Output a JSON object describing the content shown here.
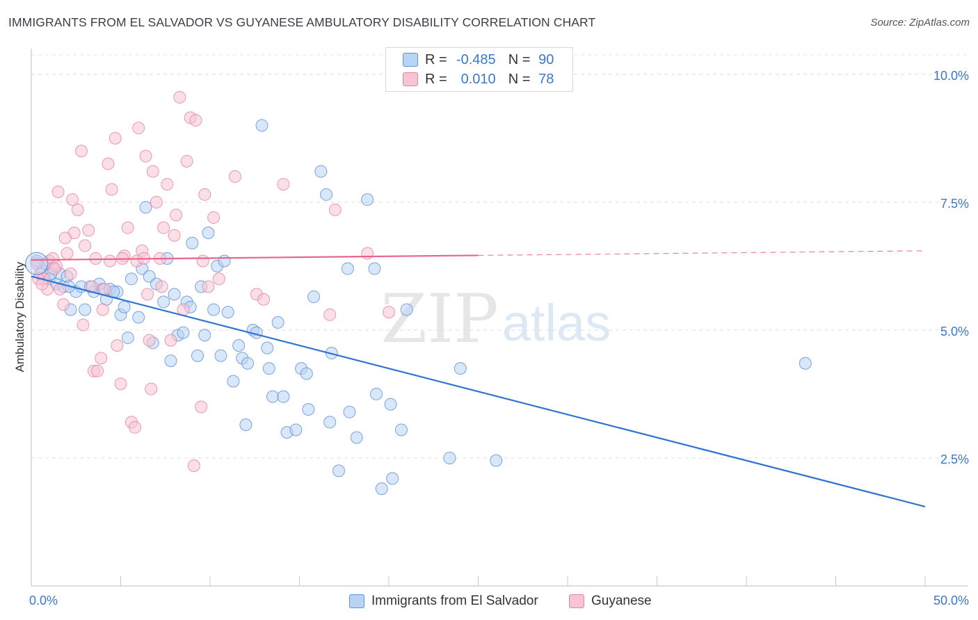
{
  "title": "IMMIGRANTS FROM EL SALVADOR VS GUYANESE AMBULATORY DISABILITY CORRELATION CHART",
  "source": "Source: ZipAtlas.com",
  "watermark": {
    "zip": "ZIP",
    "atlas": "atlas"
  },
  "legend": {
    "rows": [
      {
        "r_label": "R =",
        "r_value": "-0.485",
        "n_label": "N =",
        "n_value": "90",
        "color": "#5b8fd6"
      },
      {
        "r_label": "R =",
        "r_value": "0.010",
        "n_label": "N =",
        "n_value": "78",
        "color": "#e8809f"
      }
    ]
  },
  "bottom_legend": [
    {
      "label": "Immigrants from El Salvador",
      "color": "#5b8fd6"
    },
    {
      "label": "Guyanese",
      "color": "#e8809f"
    }
  ],
  "chart_data": {
    "type": "scatter",
    "title": "IMMIGRANTS FROM EL SALVADOR VS GUYANESE AMBULATORY DISABILITY CORRELATION CHART",
    "xlabel": "",
    "ylabel": "Ambulatory Disability",
    "xlim": [
      0,
      50
    ],
    "ylim": [
      0,
      10.5
    ],
    "x_tick_labels": [
      "0.0%",
      "50.0%"
    ],
    "y_ticks": [
      2.5,
      5.0,
      7.5,
      10.0
    ],
    "y_tick_labels": [
      "2.5%",
      "5.0%",
      "7.5%",
      "10.0%"
    ],
    "grid": true,
    "series": [
      {
        "name": "Immigrants from El Salvador",
        "color": "#5b8fd6",
        "fill": "#b8d3f4",
        "trend": {
          "x0": 0,
          "y0": 6.05,
          "x1": 50,
          "y1": 1.55,
          "dashed_from": null
        },
        "points": [
          [
            0.3,
            6.35
          ],
          [
            0.6,
            6.15
          ],
          [
            0.8,
            6.3
          ],
          [
            1.0,
            6.0
          ],
          [
            1.2,
            6.2
          ],
          [
            1.4,
            5.9
          ],
          [
            1.6,
            6.1
          ],
          [
            1.8,
            5.85
          ],
          [
            2.0,
            6.05
          ],
          [
            2.2,
            5.4
          ],
          [
            2.5,
            5.75
          ],
          [
            2.8,
            5.85
          ],
          [
            3.0,
            5.4
          ],
          [
            3.5,
            5.75
          ],
          [
            3.8,
            5.9
          ],
          [
            4.0,
            5.8
          ],
          [
            4.2,
            5.6
          ],
          [
            4.4,
            5.8
          ],
          [
            4.8,
            5.75
          ],
          [
            5.0,
            5.3
          ],
          [
            5.2,
            5.45
          ],
          [
            5.4,
            4.85
          ],
          [
            5.6,
            6.0
          ],
          [
            6.0,
            5.25
          ],
          [
            6.2,
            6.2
          ],
          [
            6.4,
            7.4
          ],
          [
            6.6,
            6.05
          ],
          [
            6.8,
            4.75
          ],
          [
            7.0,
            5.9
          ],
          [
            7.4,
            5.55
          ],
          [
            7.6,
            6.4
          ],
          [
            7.8,
            4.4
          ],
          [
            8.0,
            5.7
          ],
          [
            8.2,
            4.9
          ],
          [
            8.5,
            4.95
          ],
          [
            8.7,
            5.55
          ],
          [
            8.9,
            5.45
          ],
          [
            9.0,
            6.7
          ],
          [
            9.3,
            4.5
          ],
          [
            9.5,
            5.85
          ],
          [
            9.7,
            4.9
          ],
          [
            9.9,
            6.9
          ],
          [
            10.2,
            5.4
          ],
          [
            10.4,
            6.25
          ],
          [
            10.6,
            4.5
          ],
          [
            10.8,
            6.35
          ],
          [
            11.0,
            5.35
          ],
          [
            11.3,
            4.0
          ],
          [
            11.6,
            4.7
          ],
          [
            11.8,
            4.45
          ],
          [
            12.0,
            3.15
          ],
          [
            12.1,
            4.35
          ],
          [
            12.4,
            5.0
          ],
          [
            12.6,
            4.95
          ],
          [
            12.9,
            9.0
          ],
          [
            13.2,
            4.65
          ],
          [
            13.3,
            4.25
          ],
          [
            13.5,
            3.7
          ],
          [
            13.8,
            5.15
          ],
          [
            14.1,
            3.7
          ],
          [
            14.3,
            3.0
          ],
          [
            14.8,
            3.05
          ],
          [
            15.1,
            4.25
          ],
          [
            15.4,
            4.15
          ],
          [
            15.5,
            3.45
          ],
          [
            15.8,
            5.65
          ],
          [
            16.2,
            8.1
          ],
          [
            16.5,
            7.65
          ],
          [
            16.7,
            3.2
          ],
          [
            16.8,
            4.55
          ],
          [
            17.2,
            2.25
          ],
          [
            17.7,
            6.2
          ],
          [
            17.8,
            3.4
          ],
          [
            18.2,
            2.9
          ],
          [
            18.8,
            7.55
          ],
          [
            19.2,
            6.2
          ],
          [
            19.3,
            3.75
          ],
          [
            19.6,
            1.9
          ],
          [
            20.1,
            3.55
          ],
          [
            20.2,
            2.1
          ],
          [
            20.7,
            3.05
          ],
          [
            21.0,
            5.4
          ],
          [
            23.4,
            2.5
          ],
          [
            24.0,
            4.25
          ],
          [
            26.0,
            2.45
          ],
          [
            43.3,
            4.35
          ],
          [
            1.1,
            6.1
          ],
          [
            2.1,
            5.85
          ],
          [
            3.3,
            5.85
          ],
          [
            4.6,
            5.75
          ]
        ]
      },
      {
        "name": "Guyanese",
        "color": "#e8809f",
        "fill": "#f7c4d3",
        "trend": {
          "x0": 0,
          "y0": 6.37,
          "x1": 50,
          "y1": 6.55,
          "dashed_from": 25
        },
        "points": [
          [
            0.3,
            6.3
          ],
          [
            0.5,
            6.1
          ],
          [
            0.7,
            6.0
          ],
          [
            0.9,
            5.8
          ],
          [
            1.0,
            6.35
          ],
          [
            1.2,
            6.4
          ],
          [
            1.4,
            6.25
          ],
          [
            1.6,
            5.8
          ],
          [
            1.8,
            5.5
          ],
          [
            2.0,
            6.5
          ],
          [
            2.2,
            6.1
          ],
          [
            2.4,
            6.9
          ],
          [
            2.6,
            7.35
          ],
          [
            2.8,
            8.5
          ],
          [
            3.0,
            6.65
          ],
          [
            3.2,
            6.95
          ],
          [
            3.4,
            5.85
          ],
          [
            3.5,
            4.2
          ],
          [
            3.7,
            4.2
          ],
          [
            3.9,
            4.45
          ],
          [
            4.1,
            5.8
          ],
          [
            4.3,
            8.25
          ],
          [
            4.5,
            7.75
          ],
          [
            4.7,
            8.75
          ],
          [
            4.8,
            4.7
          ],
          [
            5.0,
            3.95
          ],
          [
            5.2,
            6.45
          ],
          [
            5.4,
            7.0
          ],
          [
            5.6,
            3.2
          ],
          [
            5.8,
            3.1
          ],
          [
            6.0,
            8.95
          ],
          [
            6.2,
            6.55
          ],
          [
            6.4,
            8.4
          ],
          [
            6.6,
            4.8
          ],
          [
            6.7,
            3.85
          ],
          [
            6.8,
            8.1
          ],
          [
            7.0,
            7.5
          ],
          [
            7.2,
            6.4
          ],
          [
            7.3,
            5.85
          ],
          [
            7.4,
            7.0
          ],
          [
            7.6,
            7.85
          ],
          [
            7.8,
            4.8
          ],
          [
            8.0,
            6.85
          ],
          [
            8.1,
            7.25
          ],
          [
            8.3,
            9.55
          ],
          [
            8.5,
            5.4
          ],
          [
            8.7,
            8.3
          ],
          [
            8.9,
            9.15
          ],
          [
            9.1,
            2.35
          ],
          [
            9.2,
            9.1
          ],
          [
            9.5,
            3.5
          ],
          [
            9.6,
            6.35
          ],
          [
            9.7,
            7.65
          ],
          [
            9.9,
            5.85
          ],
          [
            10.2,
            7.2
          ],
          [
            10.5,
            6.0
          ],
          [
            11.4,
            8.0
          ],
          [
            12.6,
            5.7
          ],
          [
            13.0,
            5.6
          ],
          [
            14.1,
            7.85
          ],
          [
            16.7,
            5.3
          ],
          [
            17.0,
            7.35
          ],
          [
            18.8,
            6.5
          ],
          [
            20.0,
            5.35
          ],
          [
            0.4,
            6.0
          ],
          [
            0.6,
            5.9
          ],
          [
            1.5,
            7.7
          ],
          [
            1.9,
            6.8
          ],
          [
            2.3,
            7.55
          ],
          [
            3.6,
            6.4
          ],
          [
            4.0,
            5.4
          ],
          [
            4.4,
            6.35
          ],
          [
            5.1,
            6.4
          ],
          [
            5.9,
            6.35
          ],
          [
            6.3,
            6.4
          ],
          [
            6.5,
            5.7
          ],
          [
            1.3,
            6.2
          ],
          [
            2.9,
            5.1
          ]
        ]
      }
    ]
  }
}
